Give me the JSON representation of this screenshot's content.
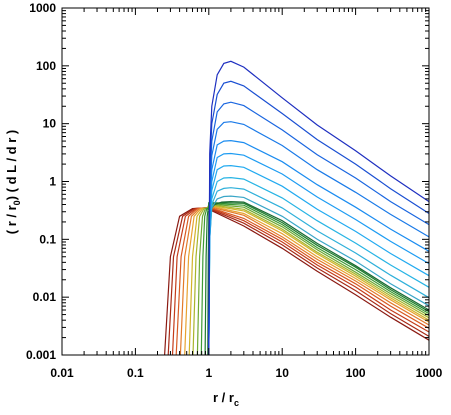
{
  "chart_data": {
    "type": "line",
    "xscale": "log",
    "yscale": "log",
    "xlim": [
      0.01,
      1000
    ],
    "ylim": [
      0.001,
      1000
    ],
    "grid": false,
    "legend": "none",
    "xticks": [
      "0.01",
      "0.1",
      "1",
      "10",
      "100",
      "1000"
    ],
    "yticks": [
      "0.001",
      "0.01",
      "0.1",
      "1",
      "10",
      "100",
      "1000"
    ],
    "xlabel": {
      "main": "r / r",
      "sub": "c"
    },
    "ylabel": {
      "main": "( r / r",
      "sub": "0",
      "tail": ") ( d L / d r )"
    },
    "series": [
      {
        "color": "#8b1a12",
        "x": [
          0.25,
          0.3,
          0.4,
          0.6,
          0.9,
          1.0,
          3,
          10,
          30,
          100,
          300,
          1000
        ],
        "y": [
          0.001,
          0.05,
          0.25,
          0.34,
          0.35,
          0.33,
          0.17,
          0.07,
          0.028,
          0.011,
          0.0045,
          0.0018
        ]
      },
      {
        "color": "#a82a16",
        "x": [
          0.28,
          0.33,
          0.44,
          0.63,
          0.9,
          1.0,
          3,
          10,
          30,
          100,
          300,
          1000
        ],
        "y": [
          0.001,
          0.05,
          0.25,
          0.34,
          0.35,
          0.34,
          0.19,
          0.08,
          0.032,
          0.013,
          0.0052,
          0.0021
        ]
      },
      {
        "color": "#c43c1a",
        "x": [
          0.32,
          0.37,
          0.48,
          0.67,
          0.92,
          1.0,
          3,
          10,
          30,
          100,
          300,
          1000
        ],
        "y": [
          0.001,
          0.05,
          0.25,
          0.34,
          0.35,
          0.35,
          0.21,
          0.09,
          0.036,
          0.015,
          0.006,
          0.0025
        ]
      },
      {
        "color": "#d85a22",
        "x": [
          0.36,
          0.42,
          0.53,
          0.7,
          0.93,
          1.0,
          3,
          10,
          30,
          100,
          300,
          1000
        ],
        "y": [
          0.001,
          0.05,
          0.25,
          0.34,
          0.35,
          0.36,
          0.23,
          0.1,
          0.04,
          0.017,
          0.007,
          0.0029
        ]
      },
      {
        "color": "#e27a2a",
        "x": [
          0.41,
          0.47,
          0.58,
          0.74,
          0.94,
          1.0,
          3,
          10,
          30,
          100,
          300,
          1000
        ],
        "y": [
          0.001,
          0.05,
          0.25,
          0.34,
          0.35,
          0.37,
          0.26,
          0.11,
          0.045,
          0.019,
          0.008,
          0.0033
        ]
      },
      {
        "color": "#e8a230",
        "x": [
          0.47,
          0.53,
          0.63,
          0.78,
          0.95,
          1.0,
          3,
          10,
          30,
          100,
          300,
          1000
        ],
        "y": [
          0.001,
          0.05,
          0.25,
          0.34,
          0.35,
          0.38,
          0.28,
          0.125,
          0.05,
          0.021,
          0.009,
          0.0037
        ]
      },
      {
        "color": "#d2b32a",
        "x": [
          0.54,
          0.6,
          0.69,
          0.82,
          0.96,
          1.0,
          3,
          10,
          30,
          100,
          300,
          1000
        ],
        "y": [
          0.001,
          0.05,
          0.25,
          0.34,
          0.35,
          0.39,
          0.31,
          0.14,
          0.056,
          0.023,
          0.0097,
          0.004
        ]
      },
      {
        "color": "#a9b52c",
        "x": [
          0.61,
          0.67,
          0.75,
          0.86,
          0.97,
          1.0,
          3,
          10,
          30,
          100,
          300,
          1000
        ],
        "y": [
          0.001,
          0.05,
          0.25,
          0.34,
          0.35,
          0.4,
          0.33,
          0.15,
          0.06,
          0.025,
          0.0105,
          0.0044
        ]
      },
      {
        "color": "#6fa832",
        "x": [
          0.7,
          0.75,
          0.82,
          0.9,
          0.98,
          1.0,
          3,
          10,
          30,
          100,
          300,
          1000
        ],
        "y": [
          0.001,
          0.05,
          0.25,
          0.34,
          0.35,
          0.41,
          0.36,
          0.165,
          0.066,
          0.027,
          0.0115,
          0.0048
        ]
      },
      {
        "color": "#3d9a34",
        "x": [
          0.79,
          0.83,
          0.88,
          0.94,
          0.99,
          1.0,
          3,
          10,
          30,
          100,
          300,
          1000
        ],
        "y": [
          0.001,
          0.05,
          0.25,
          0.34,
          0.35,
          0.42,
          0.39,
          0.18,
          0.072,
          0.03,
          0.0125,
          0.0052
        ]
      },
      {
        "color": "#1f7d2c",
        "x": [
          0.89,
          0.92,
          0.95,
          0.98,
          0.995,
          1.0,
          3,
          10,
          30,
          100,
          300,
          1000
        ],
        "y": [
          0.001,
          0.05,
          0.25,
          0.34,
          0.35,
          0.43,
          0.42,
          0.195,
          0.079,
          0.033,
          0.0135,
          0.0056
        ]
      },
      {
        "color": "#1b6a34",
        "x": [
          0.97,
          0.985,
          1.0,
          1.2,
          1.5,
          2,
          3,
          10,
          30,
          100,
          300,
          1000
        ],
        "y": [
          0.001,
          0.05,
          0.3,
          0.4,
          0.44,
          0.45,
          0.44,
          0.21,
          0.085,
          0.035,
          0.0145,
          0.006
        ]
      },
      {
        "color": "#3aa6c8",
        "x": [
          1.0,
          1.03,
          1.1,
          1.3,
          1.6,
          2,
          3,
          10,
          30,
          100,
          300,
          1000
        ],
        "y": [
          0.001,
          0.1,
          0.35,
          0.5,
          0.55,
          0.56,
          0.53,
          0.25,
          0.1,
          0.042,
          0.017,
          0.0071
        ]
      },
      {
        "color": "#2fb0da",
        "x": [
          1.0,
          1.03,
          1.1,
          1.3,
          1.6,
          2,
          3,
          10,
          30,
          100,
          300,
          1000
        ],
        "y": [
          0.001,
          0.1,
          0.4,
          0.68,
          0.76,
          0.78,
          0.74,
          0.35,
          0.14,
          0.058,
          0.024,
          0.0098
        ]
      },
      {
        "color": "#28b4e4",
        "x": [
          1.0,
          1.03,
          1.1,
          1.3,
          1.6,
          2,
          3,
          10,
          30,
          100,
          300,
          1000
        ],
        "y": [
          0.001,
          0.1,
          0.5,
          1.0,
          1.15,
          1.17,
          1.1,
          0.52,
          0.21,
          0.086,
          0.036,
          0.0148
        ]
      },
      {
        "color": "#22aaf0",
        "x": [
          1.0,
          1.03,
          1.1,
          1.3,
          1.6,
          2,
          3,
          10,
          30,
          100,
          300,
          1000
        ],
        "y": [
          0.001,
          0.15,
          0.7,
          1.6,
          1.85,
          1.88,
          1.76,
          0.83,
          0.33,
          0.137,
          0.057,
          0.0235
        ]
      },
      {
        "color": "#1e9cf2",
        "x": [
          1.0,
          1.03,
          1.1,
          1.3,
          1.6,
          2,
          3,
          10,
          30,
          100,
          300,
          1000
        ],
        "y": [
          0.001,
          0.2,
          1.0,
          2.6,
          3.0,
          3.05,
          2.85,
          1.35,
          0.54,
          0.22,
          0.092,
          0.038
        ]
      },
      {
        "color": "#1b8cf0",
        "x": [
          1.0,
          1.03,
          1.1,
          1.3,
          1.6,
          2,
          3,
          10,
          30,
          100,
          300,
          1000
        ],
        "y": [
          0.001,
          0.3,
          1.6,
          4.3,
          5.0,
          5.1,
          4.7,
          2.2,
          0.88,
          0.36,
          0.15,
          0.062
        ]
      },
      {
        "color": "#1a7ae8",
        "x": [
          1.0,
          1.03,
          1.1,
          1.3,
          1.6,
          2,
          3,
          10,
          30,
          100,
          300,
          1000
        ],
        "y": [
          0.001,
          0.5,
          2.8,
          8.0,
          10.5,
          10.8,
          9.7,
          4.2,
          1.6,
          0.65,
          0.27,
          0.11
        ]
      },
      {
        "color": "#1a66e0",
        "x": [
          1.0,
          1.03,
          1.1,
          1.3,
          1.6,
          2,
          3,
          10,
          30,
          100,
          300,
          1000
        ],
        "y": [
          0.001,
          0.8,
          5.0,
          16.0,
          22.0,
          23.5,
          20.5,
          7.8,
          2.9,
          1.15,
          0.45,
          0.18
        ]
      },
      {
        "color": "#1a4fd2",
        "x": [
          1.0,
          1.03,
          1.1,
          1.3,
          1.6,
          2,
          3,
          10,
          30,
          100,
          300,
          1000
        ],
        "y": [
          0.001,
          1.5,
          10.0,
          32.0,
          50.0,
          54.0,
          45.0,
          15.0,
          5.3,
          2.0,
          0.75,
          0.28
        ]
      },
      {
        "color": "#1e2fc0",
        "x": [
          1.0,
          1.03,
          1.1,
          1.3,
          1.6,
          2,
          3,
          10,
          30,
          100,
          300,
          1000
        ],
        "y": [
          0.001,
          3.0,
          20.0,
          70.0,
          110.0,
          120.0,
          95.0,
          28.0,
          9.5,
          3.4,
          1.25,
          0.45
        ]
      }
    ]
  }
}
